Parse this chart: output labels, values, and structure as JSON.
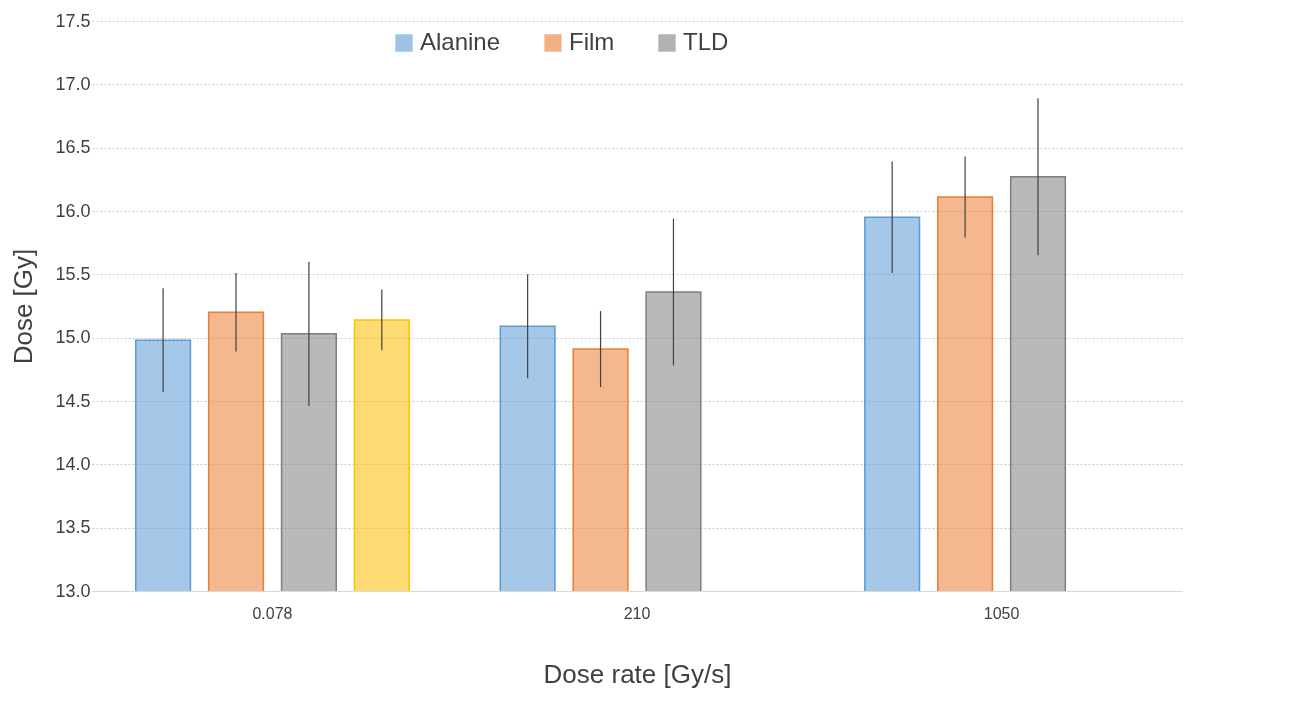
{
  "chart_data": {
    "type": "bar",
    "xlabel": "Dose rate [Gy/s]",
    "ylabel": "Dose [Gy]",
    "categories": [
      "0.078",
      "210",
      "1050"
    ],
    "series": [
      {
        "name": "Alanine",
        "color": "#5b9bd5",
        "values": [
          14.98,
          15.09,
          15.95
        ],
        "errors": [
          0.41,
          0.41,
          0.44
        ]
      },
      {
        "name": "Film",
        "color": "#ed7d31",
        "values": [
          15.2,
          14.91,
          16.11
        ],
        "errors": [
          0.31,
          0.3,
          0.32
        ]
      },
      {
        "name": "TLD",
        "color": "#7f7f7f",
        "values": [
          15.03,
          15.36,
          16.27
        ],
        "errors": [
          0.57,
          0.58,
          0.62
        ]
      },
      {
        "color": "#ffc000",
        "values": [
          15.14,
          null,
          null
        ],
        "errors": [
          0.24,
          null,
          null
        ]
      }
    ],
    "ylim": [
      13,
      17.5
    ],
    "yticks": [
      {
        "value": 13,
        "label": "13.0"
      },
      {
        "value": 13.5,
        "label": "13.5"
      },
      {
        "value": 14,
        "label": "14.0"
      },
      {
        "value": 14.5,
        "label": "14.5"
      },
      {
        "value": 15,
        "label": "15.0"
      },
      {
        "value": 15.5,
        "label": "15.5"
      },
      {
        "value": 16,
        "label": "16.0"
      },
      {
        "value": 16.5,
        "label": "16.5"
      },
      {
        "value": 17,
        "label": "17.0"
      },
      {
        "value": 17.5,
        "label": "17.5"
      }
    ],
    "grid": "y",
    "legend": "top"
  }
}
